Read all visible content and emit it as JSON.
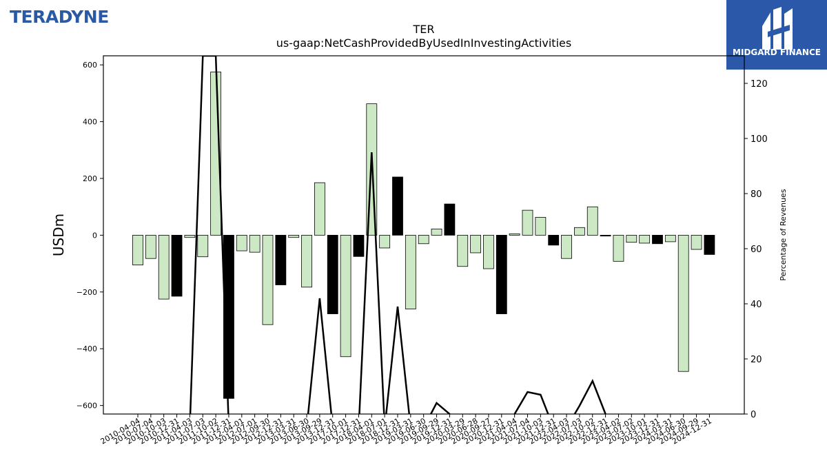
{
  "brand": {
    "name": "TERADYNE"
  },
  "watermark": {
    "name": "MIDGARD FINANCE"
  },
  "chart_data": {
    "type": "bar",
    "title": "TER",
    "subtitle": "us-gaap:NetCashProvidedByUsedInInvestingActivities",
    "ylabel": "USDm",
    "y2label": "Percentage of Revenues",
    "ylim": [
      -630,
      632
    ],
    "y2lim": [
      0,
      130
    ],
    "yticks": [
      -600,
      -400,
      -200,
      0,
      200,
      400,
      600
    ],
    "y2ticks": [
      0,
      20,
      40,
      60,
      80,
      100,
      120
    ],
    "categories": [
      "2010-04-04",
      "2010-07-04",
      "2010-10-03",
      "2010-12-31",
      "2011-04-03",
      "2011-07-03",
      "2011-10-02",
      "2011-12-31",
      "2012-04-01",
      "2012-07-01",
      "2012-09-30",
      "2012-12-31",
      "2013-03-31",
      "2013-06-30",
      "2013-09-29",
      "2013-12-31",
      "2017-10-01",
      "2017-12-31",
      "2018-04-01",
      "2018-07-01",
      "2018-12-31",
      "2019-03-31",
      "2019-06-30",
      "2019-09-29",
      "2019-12-31",
      "2020-03-29",
      "2020-06-28",
      "2020-09-27",
      "2020-12-31",
      "2021-04-04",
      "2021-07-04",
      "2021-10-03",
      "2021-12-31",
      "2022-04-03",
      "2022-07-03",
      "2022-10-02",
      "2022-12-31",
      "2023-04-02",
      "2023-07-02",
      "2023-10-01",
      "2023-12-31",
      "2024-03-31",
      "2024-06-30",
      "2024-09-29",
      "2024-12-31"
    ],
    "series": [
      {
        "values": [
          -105,
          -82,
          -225,
          -215,
          -8,
          -76,
          575,
          -575,
          -55,
          -60,
          -315,
          -175,
          -8,
          -183,
          185,
          -277,
          -428,
          -75,
          463,
          -45,
          205,
          -260,
          -30,
          22,
          110,
          -110,
          -62,
          -118,
          -277,
          5,
          88,
          63,
          -35,
          -82,
          27,
          100,
          -3,
          -92,
          -25,
          -28,
          -30,
          -23,
          -480,
          -50,
          -68
        ],
        "colors": [
          "#cce8c4",
          "#cce8c4",
          "#cce8c4",
          "#000000",
          "#cce8c4",
          "#cce8c4",
          "#cce8c4",
          "#000000",
          "#cce8c4",
          "#cce8c4",
          "#cce8c4",
          "#000000",
          "#cce8c4",
          "#cce8c4",
          "#cce8c4",
          "#000000",
          "#cce8c4",
          "#000000",
          "#cce8c4",
          "#cce8c4",
          "#000000",
          "#cce8c4",
          "#cce8c4",
          "#cce8c4",
          "#000000",
          "#cce8c4",
          "#cce8c4",
          "#cce8c4",
          "#000000",
          "#cce8c4",
          "#cce8c4",
          "#cce8c4",
          "#000000",
          "#cce8c4",
          "#cce8c4",
          "#cce8c4",
          "#000000",
          "#cce8c4",
          "#cce8c4",
          "#cce8c4",
          "#000000",
          "#cce8c4",
          "#cce8c4",
          "#cce8c4",
          "#000000"
        ]
      },
      {
        "axis": "right",
        "type": "line",
        "color": "#000000",
        "values": [
          -5,
          -5,
          -5,
          -5,
          -5,
          130,
          130,
          -5,
          -5,
          -5,
          -5,
          -5,
          -5,
          -5,
          42,
          -5,
          -5,
          -5,
          95,
          -5,
          39,
          -5,
          -5,
          4,
          0,
          -5,
          -5,
          -5,
          -5,
          0,
          8,
          7,
          -5,
          -5,
          3,
          12,
          0,
          -5,
          -5,
          -5,
          -5,
          -5,
          -5,
          -5,
          -5
        ]
      }
    ]
  }
}
